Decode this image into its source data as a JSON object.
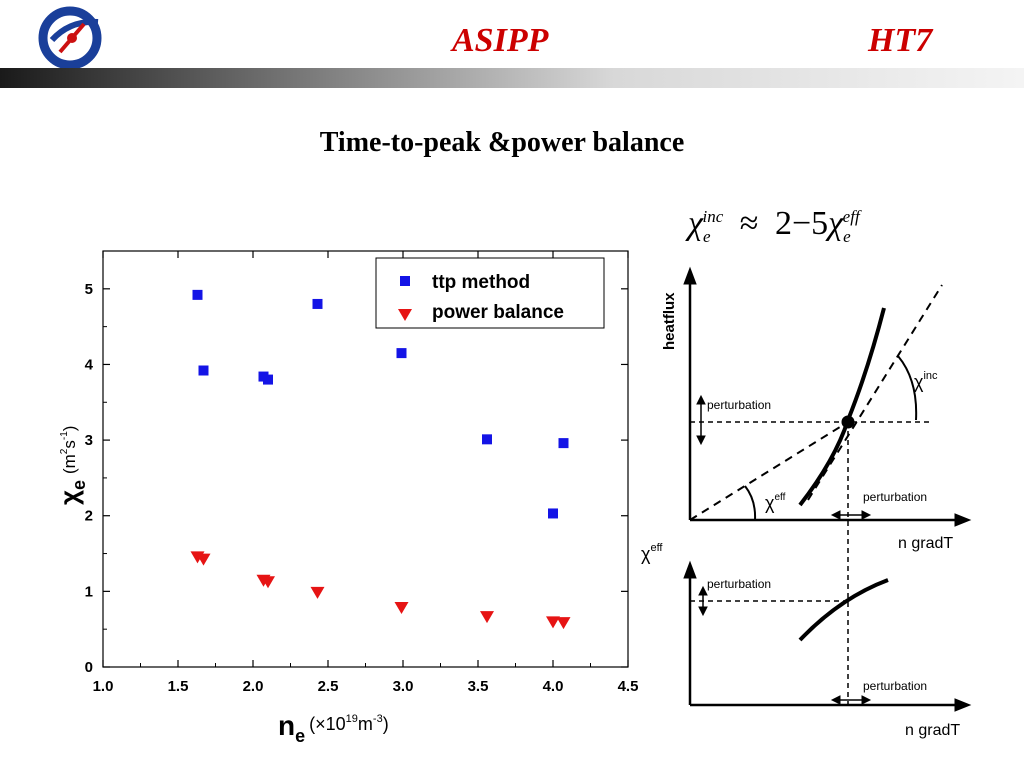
{
  "header": {
    "left_title": "ASIPP",
    "right_title": "HT7"
  },
  "slide_title": "Time-to-peak &power balance",
  "formula": {
    "symbol": "χ",
    "sub": "e",
    "sup_left": "inc",
    "relation": "≈",
    "range": "2−5",
    "sup_right": "eff"
  },
  "chart_data": {
    "type": "scatter",
    "xlabel_main": "n",
    "xlabel_sub": "e",
    "xlabel_unit": "(×10",
    "xlabel_unit_exp": "19",
    "xlabel_unit_end": "m",
    "xlabel_unit_end_exp": "-3",
    "xlabel_unit_close": ")",
    "ylabel_main": "χ",
    "ylabel_sub": "e",
    "ylabel_unit": "(m",
    "ylabel_unit_exp": "2",
    "ylabel_unit_s": "s",
    "ylabel_unit_s_exp": "-1",
    "ylabel_unit_close": ")",
    "xlim": [
      1.0,
      4.5
    ],
    "ylim": [
      0,
      5.5
    ],
    "x_ticks": [
      "1.0",
      "1.5",
      "2.0",
      "2.5",
      "3.0",
      "3.5",
      "4.0",
      "4.5"
    ],
    "y_ticks": [
      "0",
      "1",
      "2",
      "3",
      "4",
      "5"
    ],
    "legend_position": "top-right",
    "series": [
      {
        "name": "ttp method",
        "color": "#1414e6",
        "marker": "square",
        "x": [
          1.63,
          1.67,
          2.07,
          2.1,
          2.43,
          2.99,
          3.56,
          4.0,
          4.07
        ],
        "y": [
          4.92,
          3.92,
          3.84,
          3.8,
          4.8,
          4.15,
          3.01,
          2.03,
          2.96
        ]
      },
      {
        "name": "power balance",
        "color": "#e61414",
        "marker": "triangle-down",
        "x": [
          1.63,
          1.67,
          2.07,
          2.1,
          2.43,
          2.99,
          3.56,
          4.0,
          4.07
        ],
        "y": [
          1.45,
          1.42,
          1.14,
          1.12,
          0.98,
          0.78,
          0.66,
          0.59,
          0.58
        ]
      }
    ]
  },
  "diagram": {
    "top_ylabel": "heatflux",
    "top_xlabel": "n gradT",
    "chi_inc_label": "χ",
    "chi_inc_sup": "inc",
    "chi_eff_label": "χ",
    "chi_eff_sup": "eff",
    "perturbation_y_top": "perturbation",
    "perturbation_x_top": "perturbation",
    "bottom_ylabel": "χ",
    "bottom_ylabel_sup": "eff",
    "perturbation_y_bottom": "perturbation",
    "perturbation_x_bottom": "perturbation",
    "bottom_xlabel": "n gradT"
  }
}
